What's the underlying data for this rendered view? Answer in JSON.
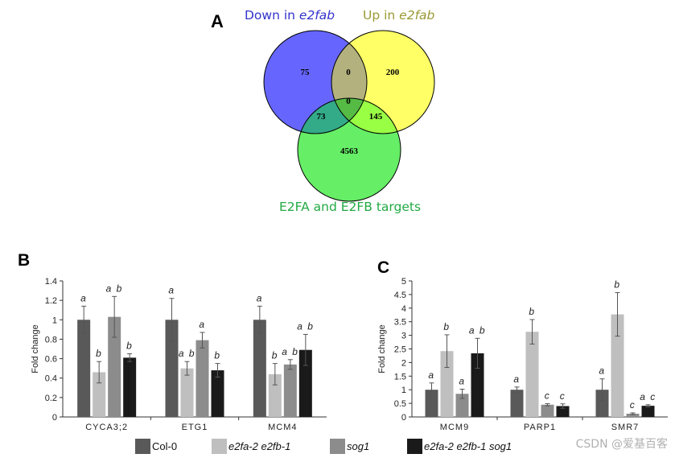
{
  "colors": {
    "down": "#6666ff",
    "up": "#ffff66",
    "targets": "#66ee66",
    "overlap_down_up": "#b3b27f",
    "overlap_down_targets": "#33aa88",
    "overlap_up_targets": "#99ff44",
    "overlap_all": "#55bb44",
    "label_down": "#3333cc",
    "label_up": "#999933",
    "label_targets": "#22aa44",
    "col0": "#595959",
    "e2fa_e2fb": "#bfbfbf",
    "sog1": "#8c8c8c",
    "triple": "#1a1a1a"
  },
  "panel_a": {
    "letter": "A",
    "label_down_prefix": "Down in ",
    "label_down_italic": "e2fab",
    "label_up_prefix": "Up in ",
    "label_up_italic": "e2fab",
    "label_targets": "E2FA and E2FB targets",
    "counts": {
      "down_only": "75",
      "down_up": "0",
      "up_only": "200",
      "all_three": "0",
      "down_targets": "73",
      "up_targets": "145",
      "targets_only": "4563"
    }
  },
  "legend": [
    {
      "label": "Col-0",
      "italic": false,
      "color_key": "col0"
    },
    {
      "label": "e2fa-2 e2fb-1",
      "italic": true,
      "color_key": "e2fa_e2fb"
    },
    {
      "label": "sog1",
      "italic": true,
      "color_key": "sog1"
    },
    {
      "label": "e2fa-2 e2fb-1 sog1",
      "italic": true,
      "color_key": "triple"
    }
  ],
  "watermark": "CSDN @爱基百客",
  "chart_data": [
    {
      "type": "bar",
      "panel": "B",
      "ylabel": "Fold change",
      "ylim": [
        0,
        1.4
      ],
      "yticks": [
        "0",
        "0.2",
        "0.4",
        "0.6",
        "0.8",
        "1",
        "1.2",
        "1.4"
      ],
      "categories": [
        "CYCA3;2",
        "ETG1",
        "MCM4"
      ],
      "series": [
        {
          "name": "Col-0",
          "values": [
            1.0,
            1.0,
            1.0
          ],
          "errors": [
            0.14,
            0.22,
            0.14
          ],
          "letters": [
            "a",
            "a",
            "a"
          ]
        },
        {
          "name": "e2fa-2 e2fb-1",
          "values": [
            0.46,
            0.5,
            0.44
          ],
          "errors": [
            0.11,
            0.07,
            0.11
          ],
          "letters": [
            "b",
            "ab",
            "b"
          ]
        },
        {
          "name": "sog1",
          "values": [
            1.03,
            0.79,
            0.54
          ],
          "errors": [
            0.21,
            0.08,
            0.05
          ],
          "letters": [
            "ab",
            "a",
            "ab"
          ]
        },
        {
          "name": "e2fa-2 e2fb-1 sog1",
          "values": [
            0.61,
            0.48,
            0.69
          ],
          "errors": [
            0.04,
            0.07,
            0.16
          ],
          "letters": [
            "b",
            "b",
            "ab"
          ]
        }
      ]
    },
    {
      "type": "bar",
      "panel": "C",
      "ylabel": "Fold change",
      "ylim": [
        0,
        5
      ],
      "yticks": [
        "0",
        "0.5",
        "1",
        "1.5",
        "2",
        "2.5",
        "3",
        "3.5",
        "4",
        "4.5",
        "5"
      ],
      "categories": [
        "MCM9",
        "PARP1",
        "SMR7"
      ],
      "series": [
        {
          "name": "Col-0",
          "values": [
            1.0,
            1.0,
            1.0
          ],
          "errors": [
            0.25,
            0.1,
            0.4
          ],
          "letters": [
            "a",
            "a",
            "a"
          ]
        },
        {
          "name": "e2fa-2 e2fb-1",
          "values": [
            2.42,
            3.13,
            3.77
          ],
          "errors": [
            0.6,
            0.45,
            0.8
          ],
          "letters": [
            "b",
            "b",
            "b"
          ]
        },
        {
          "name": "sog1",
          "values": [
            0.85,
            0.45,
            0.12
          ],
          "errors": [
            0.17,
            0.04,
            0.03
          ],
          "letters": [
            "a",
            "c",
            "c"
          ]
        },
        {
          "name": "e2fa-2 e2fb-1 sog1",
          "values": [
            2.34,
            0.4,
            0.41
          ],
          "errors": [
            0.55,
            0.08,
            0.04
          ],
          "letters": [
            "ab",
            "c",
            "ac"
          ]
        }
      ]
    }
  ]
}
